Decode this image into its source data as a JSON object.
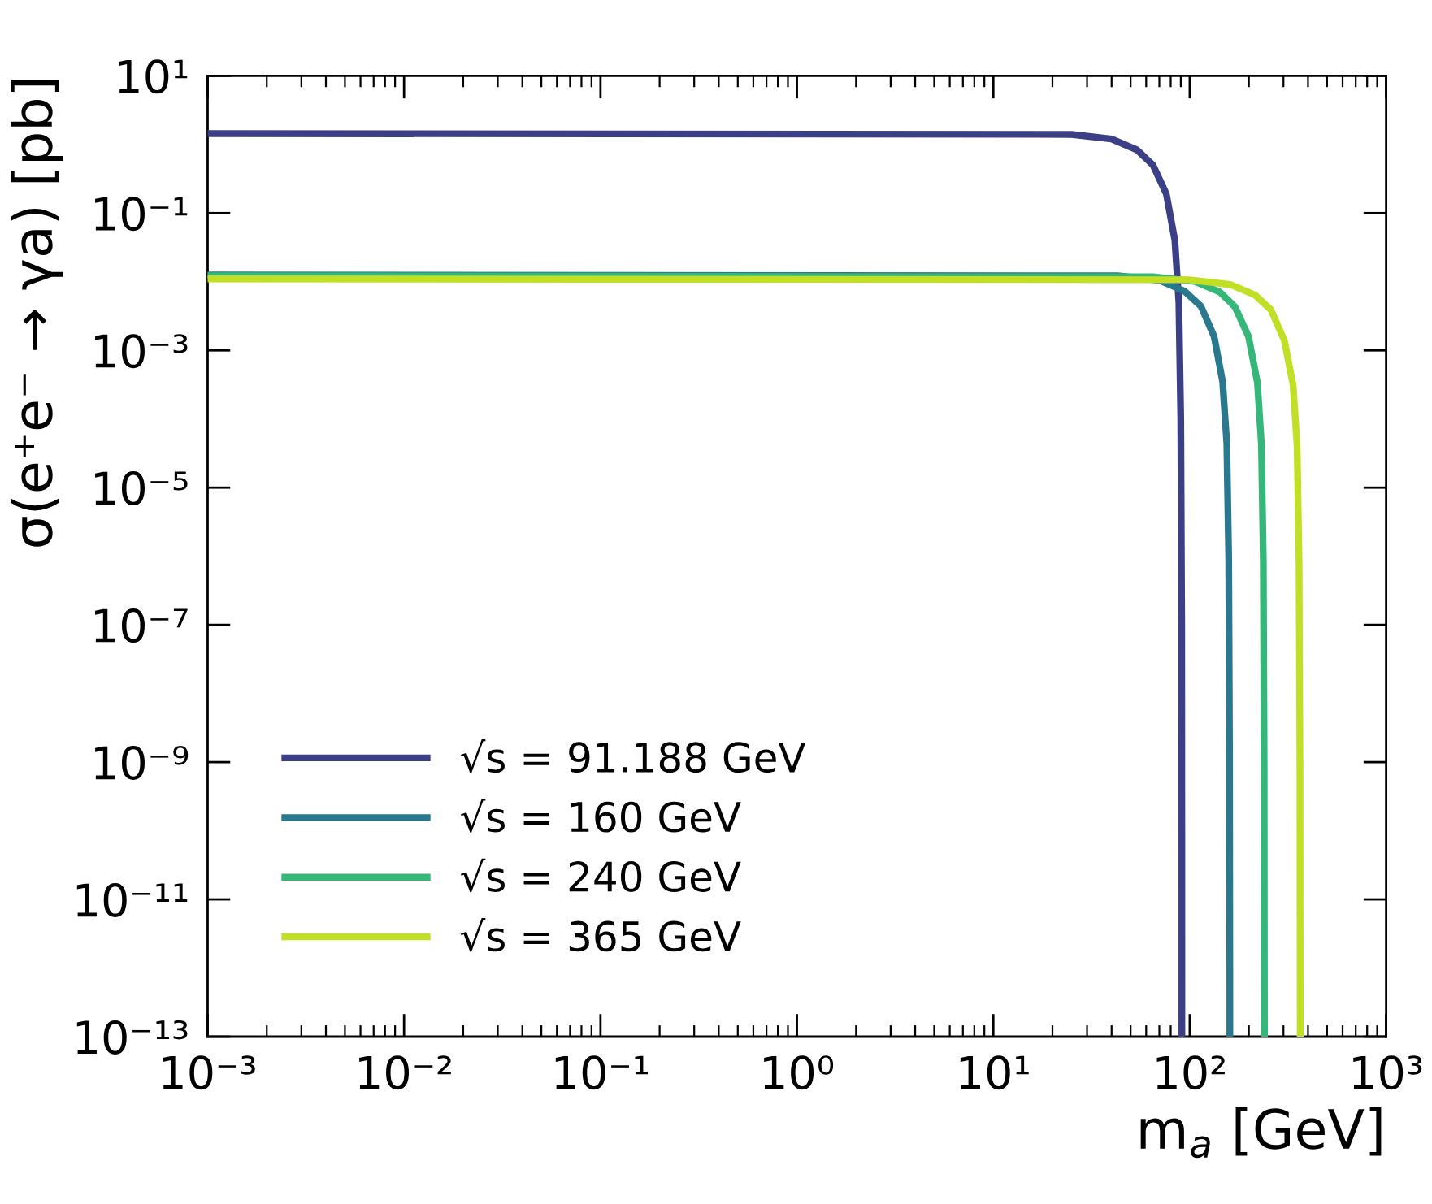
{
  "chart_data": {
    "type": "line",
    "xlabel": "m$_{a}$ [GeV]",
    "ylabel": "σ(e⁺e⁻ → γa) [pb]",
    "log": "xy",
    "xlim": [
      0.001,
      1000
    ],
    "ylim": [
      1e-13,
      10
    ],
    "xticks": [
      {
        "value": 0.001,
        "label": "10⁻³"
      },
      {
        "value": 0.01,
        "label": "10⁻²"
      },
      {
        "value": 0.1,
        "label": "10⁻¹"
      },
      {
        "value": 1,
        "label": "10⁰"
      },
      {
        "value": 10,
        "label": "10¹"
      },
      {
        "value": 100,
        "label": "10²"
      },
      {
        "value": 1000,
        "label": "10³"
      }
    ],
    "yticks": [
      {
        "value": 1e-13,
        "label": "10⁻¹³"
      },
      {
        "value": 1e-11,
        "label": "10⁻¹¹"
      },
      {
        "value": 1e-09,
        "label": "10⁻⁹"
      },
      {
        "value": 1e-07,
        "label": "10⁻⁷"
      },
      {
        "value": 1e-05,
        "label": "10⁻⁵"
      },
      {
        "value": 0.001,
        "label": "10⁻³"
      },
      {
        "value": 0.1,
        "label": "10⁻¹"
      },
      {
        "value": 10,
        "label": "10¹"
      }
    ],
    "grid": false,
    "legend": "bottom left",
    "marker": "none",
    "line_style": "solid",
    "series": [
      {
        "name": "√s = 91.188 GeV",
        "color": "#3b3f85",
        "x": [
          0.001,
          25,
          40,
          54,
          65,
          76,
          84,
          88,
          90,
          91,
          91.15,
          91.188
        ],
        "values": [
          1.44,
          1.4,
          1.2,
          0.83,
          0.5,
          0.19,
          0.04,
          0.005,
          0.0001,
          1e-07,
          1e-10,
          1e-13
        ]
      },
      {
        "name": "√s = 160 GeV",
        "color": "#2a788e",
        "x": [
          0.001,
          43,
          70,
          94,
          114,
          133,
          147,
          154.4,
          157.9,
          159.5,
          159.92,
          160
        ],
        "values": [
          0.0126,
          0.0122,
          0.0105,
          0.0073,
          0.0044,
          0.0016,
          0.00035,
          4.4e-05,
          9e-07,
          9e-10,
          9e-13,
          1e-13
        ]
      },
      {
        "name": "√s = 240 GeV",
        "color": "#35b779",
        "x": [
          0.001,
          65,
          106,
          142,
          170,
          199,
          221,
          231.6,
          236.9,
          239.3,
          239.88,
          240
        ],
        "values": [
          0.0122,
          0.0118,
          0.0101,
          0.0071,
          0.0043,
          0.0016,
          0.00034,
          4.3e-05,
          8.5e-07,
          8.5e-10,
          8.5e-13,
          1e-13
        ]
      },
      {
        "name": "√s = 365 GeV",
        "color": "#c0df25",
        "x": [
          0.001,
          99,
          161,
          215,
          259,
          303,
          336,
          352.2,
          360.3,
          363.9,
          364.82,
          365
        ],
        "values": [
          0.011,
          0.0107,
          0.0091,
          0.0064,
          0.0039,
          0.0014,
          0.00031,
          3.9e-05,
          7.7e-07,
          7.7e-10,
          7.7e-13,
          1e-13
        ]
      }
    ]
  }
}
